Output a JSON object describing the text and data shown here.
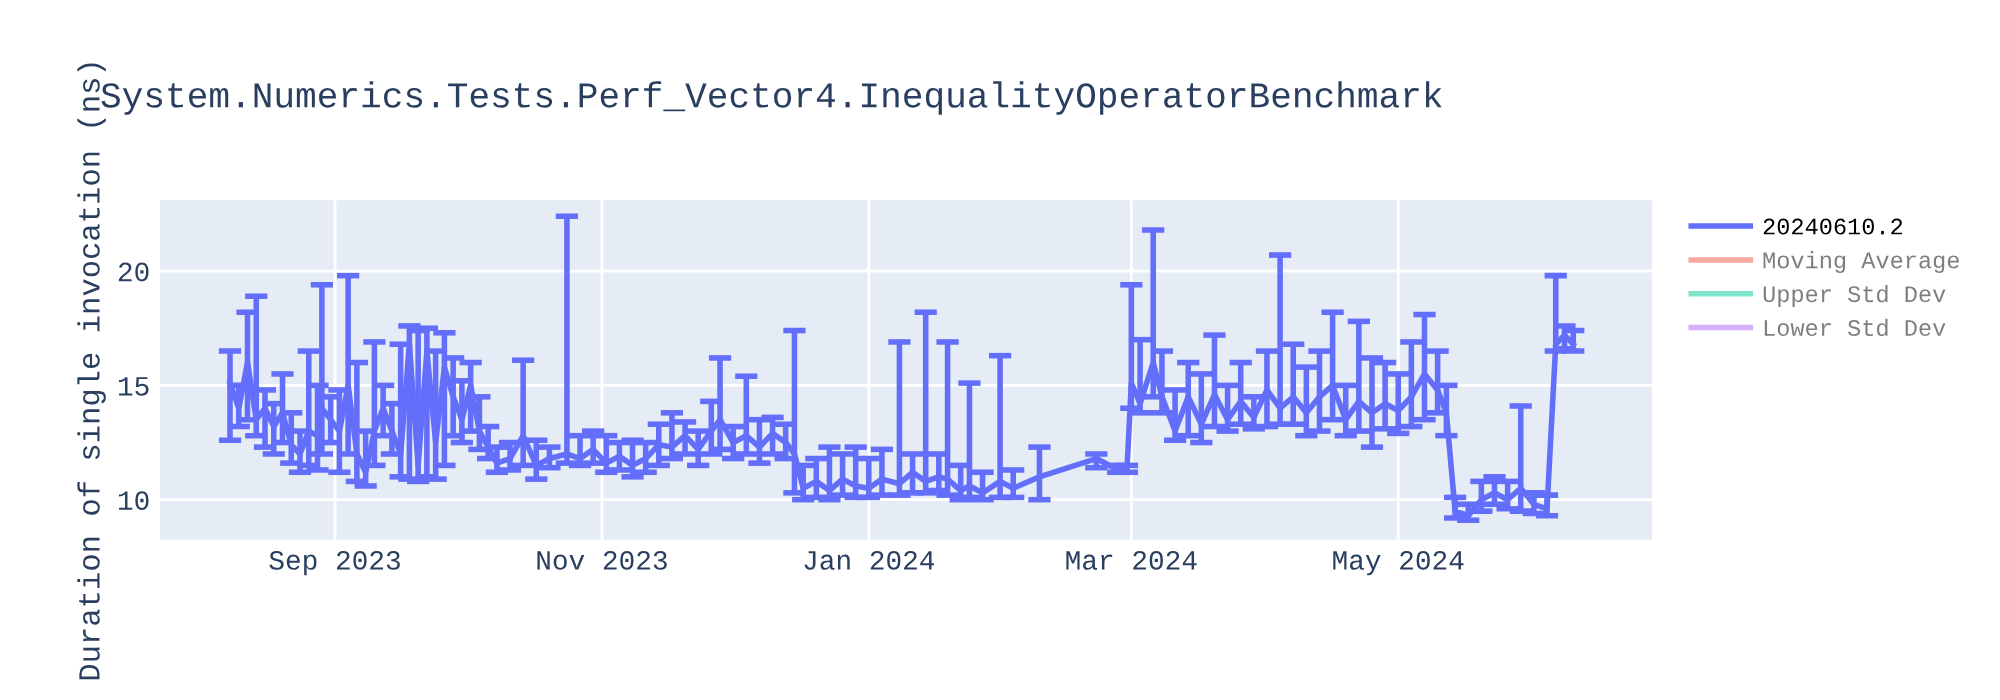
{
  "chart_data": {
    "type": "line",
    "title": "System.Numerics.Tests.Perf_Vector4.InequalityOperatorBenchmark",
    "ylabel": "Duration of single invocation (ns)",
    "xlim": [
      "2023-07-23",
      "2024-06-28"
    ],
    "ylim": [
      8.25,
      23.1
    ],
    "xticks": [
      {
        "value": "2023-09-01",
        "label": "Sep 2023"
      },
      {
        "value": "2023-11-01",
        "label": "Nov 2023"
      },
      {
        "value": "2024-01-01",
        "label": "Jan 2024"
      },
      {
        "value": "2024-03-01",
        "label": "Mar 2024"
      },
      {
        "value": "2024-05-01",
        "label": "May 2024"
      }
    ],
    "yticks": [
      10,
      15,
      20
    ],
    "grid": true,
    "legend": "top right",
    "marker": "none",
    "line_style": "solid",
    "x": [
      "2023-08-08",
      "2023-08-10",
      "2023-08-12",
      "2023-08-14",
      "2023-08-16",
      "2023-08-18",
      "2023-08-20",
      "2023-08-22",
      "2023-08-24",
      "2023-08-26",
      "2023-08-28",
      "2023-08-29",
      "2023-08-31",
      "2023-09-02",
      "2023-09-04",
      "2023-09-06",
      "2023-09-08",
      "2023-09-10",
      "2023-09-12",
      "2023-09-14",
      "2023-09-16",
      "2023-09-18",
      "2023-09-20",
      "2023-09-22",
      "2023-09-24",
      "2023-09-26",
      "2023-09-28",
      "2023-09-30",
      "2023-10-02",
      "2023-10-04",
      "2023-10-06",
      "2023-10-08",
      "2023-10-11",
      "2023-10-14",
      "2023-10-17",
      "2023-10-20",
      "2023-10-24",
      "2023-10-27",
      "2023-10-30",
      "2023-11-02",
      "2023-11-05",
      "2023-11-08",
      "2023-11-11",
      "2023-11-14",
      "2023-11-17",
      "2023-11-20",
      "2023-11-23",
      "2023-11-26",
      "2023-11-28",
      "2023-12-01",
      "2023-12-04",
      "2023-12-07",
      "2023-12-10",
      "2023-12-13",
      "2023-12-15",
      "2023-12-17",
      "2023-12-20",
      "2023-12-23",
      "2023-12-26",
      "2023-12-29",
      "2024-01-01",
      "2024-01-04",
      "2024-01-08",
      "2024-01-11",
      "2024-01-14",
      "2024-01-17",
      "2024-01-19",
      "2024-01-22",
      "2024-01-24",
      "2024-01-27",
      "2024-01-31",
      "2024-02-03",
      "2024-02-09",
      "2024-02-22",
      "2024-02-27",
      "2024-02-29",
      "2024-03-01",
      "2024-03-03",
      "2024-03-06",
      "2024-03-08",
      "2024-03-11",
      "2024-03-14",
      "2024-03-17",
      "2024-03-20",
      "2024-03-23",
      "2024-03-26",
      "2024-03-29",
      "2024-04-01",
      "2024-04-04",
      "2024-04-07",
      "2024-04-10",
      "2024-04-13",
      "2024-04-16",
      "2024-04-19",
      "2024-04-22",
      "2024-04-25",
      "2024-04-28",
      "2024-05-01",
      "2024-05-04",
      "2024-05-07",
      "2024-05-10",
      "2024-05-12",
      "2024-05-14",
      "2024-05-17",
      "2024-05-20",
      "2024-05-23",
      "2024-05-26",
      "2024-05-29",
      "2024-06-01",
      "2024-06-04",
      "2024-06-06",
      "2024-06-08",
      "2024-06-10"
    ],
    "series": [
      {
        "name": "20240610.2",
        "color": "#636efa",
        "values": [
          15.1,
          14.0,
          16.0,
          13.5,
          14.0,
          13.2,
          13.8,
          12.4,
          12.0,
          13.0,
          12.8,
          14.0,
          13.5,
          13.0,
          15.0,
          12.0,
          11.2,
          13.0,
          14.0,
          13.0,
          12.0,
          16.8,
          11.5,
          16.5,
          12.5,
          15.8,
          14.5,
          13.5,
          15.0,
          13.0,
          12.3,
          11.6,
          11.8,
          12.8,
          11.5,
          11.8,
          12.0,
          11.8,
          12.2,
          11.6,
          11.9,
          11.5,
          11.8,
          12.4,
          12.3,
          12.8,
          12.2,
          13.0,
          13.5,
          12.5,
          12.8,
          12.3,
          12.9,
          12.5,
          12.0,
          10.5,
          10.8,
          10.4,
          10.9,
          10.6,
          10.5,
          10.9,
          10.7,
          11.2,
          10.8,
          11.0,
          10.9,
          10.4,
          10.6,
          10.3,
          10.8,
          10.5,
          11.0,
          11.8,
          11.3,
          11.3,
          15.1,
          14.2,
          16.0,
          14.5,
          13.0,
          14.5,
          13.3,
          14.6,
          13.5,
          14.3,
          13.6,
          14.8,
          14.0,
          14.5,
          13.8,
          14.5,
          15.0,
          13.5,
          14.3,
          13.8,
          14.2,
          13.9,
          14.5,
          15.5,
          14.8,
          13.8,
          9.5,
          9.3,
          10.0,
          10.3,
          10.0,
          10.5,
          9.8,
          9.6,
          16.8,
          17.2,
          16.8
        ],
        "errors": [
          [
            12.6,
            16.5
          ],
          [
            13.2,
            15.0
          ],
          [
            13.5,
            18.2
          ],
          [
            12.8,
            18.9
          ],
          [
            12.3,
            14.8
          ],
          [
            12.0,
            14.2
          ],
          [
            12.5,
            15.5
          ],
          [
            11.6,
            13.8
          ],
          [
            11.2,
            13.0
          ],
          [
            11.5,
            16.5
          ],
          [
            11.3,
            15.0
          ],
          [
            12.0,
            19.4
          ],
          [
            12.5,
            14.5
          ],
          [
            11.2,
            14.8
          ],
          [
            12.0,
            19.8
          ],
          [
            10.8,
            16.0
          ],
          [
            10.6,
            13.0
          ],
          [
            11.5,
            16.9
          ],
          [
            12.8,
            15.0
          ],
          [
            12.0,
            14.2
          ],
          [
            11.0,
            16.8
          ],
          [
            10.9,
            17.6
          ],
          [
            10.8,
            17.4
          ],
          [
            11.0,
            17.5
          ],
          [
            10.9,
            16.5
          ],
          [
            11.5,
            17.3
          ],
          [
            12.8,
            16.2
          ],
          [
            12.5,
            15.2
          ],
          [
            13.0,
            16.0
          ],
          [
            12.2,
            14.5
          ],
          [
            11.8,
            13.2
          ],
          [
            11.2,
            12.3
          ],
          [
            11.3,
            12.5
          ],
          [
            11.5,
            16.1
          ],
          [
            10.9,
            12.6
          ],
          [
            11.4,
            12.3
          ],
          [
            11.6,
            22.4
          ],
          [
            11.5,
            12.8
          ],
          [
            11.6,
            13.0
          ],
          [
            11.2,
            12.8
          ],
          [
            11.3,
            12.5
          ],
          [
            11.0,
            12.6
          ],
          [
            11.2,
            12.5
          ],
          [
            11.5,
            13.3
          ],
          [
            11.8,
            13.8
          ],
          [
            12.0,
            13.4
          ],
          [
            11.5,
            13.0
          ],
          [
            12.0,
            14.3
          ],
          [
            12.2,
            16.2
          ],
          [
            11.8,
            13.2
          ],
          [
            12.0,
            15.4
          ],
          [
            11.6,
            13.5
          ],
          [
            12.0,
            13.6
          ],
          [
            11.8,
            13.3
          ],
          [
            10.3,
            17.4
          ],
          [
            10.0,
            11.5
          ],
          [
            10.1,
            11.8
          ],
          [
            10.0,
            12.3
          ],
          [
            10.2,
            12.0
          ],
          [
            10.1,
            12.3
          ],
          [
            10.1,
            11.8
          ],
          [
            10.2,
            12.2
          ],
          [
            10.2,
            16.9
          ],
          [
            10.3,
            12.0
          ],
          [
            10.3,
            18.2
          ],
          [
            10.4,
            12.0
          ],
          [
            10.2,
            16.9
          ],
          [
            10.0,
            11.5
          ],
          [
            10.1,
            15.1
          ],
          [
            10.0,
            11.2
          ],
          [
            10.1,
            16.3
          ],
          [
            10.1,
            11.3
          ],
          [
            10.0,
            12.3
          ],
          [
            11.4,
            12.0
          ],
          [
            11.2,
            11.5
          ],
          [
            11.2,
            11.5
          ],
          [
            14.0,
            19.4
          ],
          [
            13.8,
            17.0
          ],
          [
            14.5,
            21.8
          ],
          [
            13.8,
            16.5
          ],
          [
            12.6,
            14.8
          ],
          [
            12.8,
            16.0
          ],
          [
            12.5,
            15.5
          ],
          [
            13.2,
            17.2
          ],
          [
            13.0,
            15.0
          ],
          [
            13.3,
            16.0
          ],
          [
            13.1,
            14.5
          ],
          [
            13.2,
            16.5
          ],
          [
            13.3,
            20.7
          ],
          [
            13.3,
            16.8
          ],
          [
            12.8,
            15.8
          ],
          [
            13.0,
            16.5
          ],
          [
            13.5,
            18.2
          ],
          [
            12.8,
            15.0
          ],
          [
            13.0,
            17.8
          ],
          [
            12.3,
            16.2
          ],
          [
            13.1,
            16.0
          ],
          [
            12.9,
            15.5
          ],
          [
            13.2,
            16.9
          ],
          [
            13.5,
            18.1
          ],
          [
            13.8,
            16.5
          ],
          [
            12.8,
            15.0
          ],
          [
            9.2,
            10.1
          ],
          [
            9.1,
            9.8
          ],
          [
            9.5,
            10.8
          ],
          [
            9.8,
            11.0
          ],
          [
            9.6,
            10.8
          ],
          [
            9.5,
            14.1
          ],
          [
            9.4,
            10.3
          ],
          [
            9.3,
            10.2
          ],
          [
            16.5,
            19.8
          ],
          [
            16.6,
            17.6
          ],
          [
            16.5,
            17.4
          ]
        ]
      },
      {
        "name": "Moving Average",
        "color": "#ef553b",
        "values": [
          null,
          null,
          null,
          null,
          null,
          null,
          null,
          null,
          null,
          null,
          null,
          null,
          null,
          null,
          null,
          null,
          null,
          null,
          null,
          null,
          null,
          null,
          null,
          null,
          null,
          null,
          null,
          null,
          null,
          null,
          null,
          null,
          null,
          null,
          null,
          null,
          null,
          null,
          null,
          null,
          null,
          null,
          null,
          null,
          null,
          null,
          null,
          null,
          null,
          null,
          null,
          null,
          null,
          null,
          null,
          null,
          null,
          null,
          null,
          null,
          null,
          null,
          null,
          null,
          null,
          null,
          null,
          null,
          null,
          null,
          null,
          null,
          null,
          null,
          null,
          null,
          null,
          null,
          null,
          null,
          null,
          null,
          null,
          null,
          null,
          null,
          null,
          null,
          null,
          null,
          null,
          null,
          null,
          null,
          null,
          null,
          null,
          null,
          null,
          null,
          null,
          null,
          null,
          null,
          null,
          null,
          null,
          null,
          null,
          null,
          null,
          null,
          null
        ]
      },
      {
        "name": "Upper Std Dev",
        "color": "#00cc96",
        "values": [
          null,
          null,
          null,
          null,
          null,
          null,
          null,
          null,
          null,
          null,
          null,
          null,
          null,
          null,
          null,
          null,
          null,
          null,
          null,
          null,
          null,
          null,
          null,
          null,
          null,
          null,
          null,
          null,
          null,
          null,
          null,
          null,
          null,
          null,
          null,
          null,
          null,
          null,
          null,
          null,
          null,
          null,
          null,
          null,
          null,
          null,
          null,
          null,
          null,
          null,
          null,
          null,
          null,
          null,
          null,
          null,
          null,
          null,
          null,
          null,
          null,
          null,
          null,
          null,
          null,
          null,
          null,
          null,
          null,
          null,
          null,
          null,
          null,
          null,
          null,
          null,
          null,
          null,
          null,
          null,
          null,
          null,
          null,
          null,
          null,
          null,
          null,
          null,
          null,
          null,
          null,
          null,
          null,
          null,
          null,
          null,
          null,
          null,
          null,
          null,
          null,
          null,
          null,
          null,
          null,
          null,
          null,
          null,
          null,
          null,
          null,
          null,
          null
        ]
      },
      {
        "name": "Lower Std Dev",
        "color": "#ab63fa",
        "values": [
          null,
          null,
          null,
          null,
          null,
          null,
          null,
          null,
          null,
          null,
          null,
          null,
          null,
          null,
          null,
          null,
          null,
          null,
          null,
          null,
          null,
          null,
          null,
          null,
          null,
          null,
          null,
          null,
          null,
          null,
          null,
          null,
          null,
          null,
          null,
          null,
          null,
          null,
          null,
          null,
          null,
          null,
          null,
          null,
          null,
          null,
          null,
          null,
          null,
          null,
          null,
          null,
          null,
          null,
          null,
          null,
          null,
          null,
          null,
          null,
          null,
          null,
          null,
          null,
          null,
          null,
          null,
          null,
          null,
          null,
          null,
          null,
          null,
          null,
          null,
          null,
          null,
          null,
          null,
          null,
          null,
          null,
          null,
          null,
          null,
          null,
          null,
          null,
          null,
          null,
          null,
          null,
          null,
          null,
          null,
          null,
          null,
          null,
          null,
          null,
          null,
          null,
          null,
          null,
          null,
          null,
          null,
          null,
          null,
          null,
          null,
          null,
          null
        ]
      }
    ]
  }
}
